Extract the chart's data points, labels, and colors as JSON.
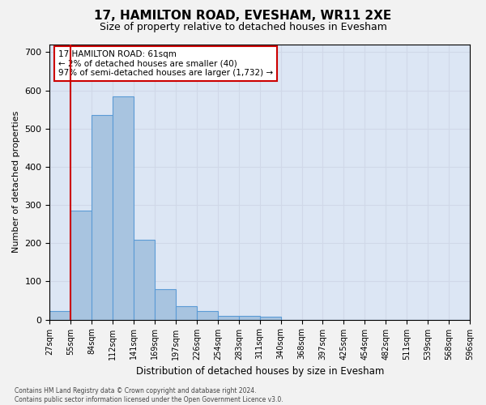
{
  "title": "17, HAMILTON ROAD, EVESHAM, WR11 2XE",
  "subtitle": "Size of property relative to detached houses in Evesham",
  "xlabel": "Distribution of detached houses by size in Evesham",
  "ylabel": "Number of detached properties",
  "footnote1": "Contains HM Land Registry data © Crown copyright and database right 2024.",
  "footnote2": "Contains public sector information licensed under the Open Government Licence v3.0.",
  "bins": [
    "27sqm",
    "55sqm",
    "84sqm",
    "112sqm",
    "141sqm",
    "169sqm",
    "197sqm",
    "226sqm",
    "254sqm",
    "283sqm",
    "311sqm",
    "340sqm",
    "368sqm",
    "397sqm",
    "425sqm",
    "454sqm",
    "482sqm",
    "511sqm",
    "539sqm",
    "568sqm",
    "596sqm"
  ],
  "bar_values": [
    22,
    285,
    535,
    585,
    210,
    80,
    35,
    22,
    10,
    10,
    8,
    0,
    0,
    0,
    0,
    0,
    0,
    0,
    0,
    0
  ],
  "bar_color": "#a8c4e0",
  "bar_edge_color": "#5b9bd5",
  "property_bin_index": 1,
  "vline_color": "#cc0000",
  "annotation_text": "17 HAMILTON ROAD: 61sqm\n← 2% of detached houses are smaller (40)\n97% of semi-detached houses are larger (1,732) →",
  "annotation_box_color": "#ffffff",
  "annotation_box_edge": "#cc0000",
  "ylim": [
    0,
    720
  ],
  "yticks": [
    0,
    100,
    200,
    300,
    400,
    500,
    600,
    700
  ],
  "grid_color": "#d0d8e8",
  "bg_color": "#dce6f4",
  "fig_bg_color": "#f2f2f2"
}
